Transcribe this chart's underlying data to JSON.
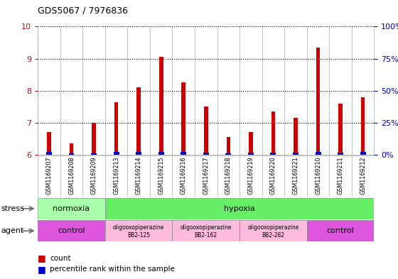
{
  "title": "GDS5067 / 7976836",
  "samples": [
    "GSM1169207",
    "GSM1169208",
    "GSM1169209",
    "GSM1169213",
    "GSM1169214",
    "GSM1169215",
    "GSM1169216",
    "GSM1169217",
    "GSM1169218",
    "GSM1169219",
    "GSM1169220",
    "GSM1169221",
    "GSM1169210",
    "GSM1169211",
    "GSM1169212"
  ],
  "count_values": [
    6.7,
    6.35,
    7.0,
    7.65,
    8.1,
    9.05,
    8.25,
    7.5,
    6.55,
    6.7,
    7.35,
    7.15,
    9.35,
    7.6,
    7.8
  ],
  "percentile_values": [
    2,
    1,
    1,
    2,
    2,
    2,
    2,
    1.5,
    1,
    1.5,
    1.5,
    1.5,
    2.5,
    1.5,
    2
  ],
  "count_base": 6.0,
  "ylim_left": [
    6,
    10
  ],
  "ylim_right": [
    0,
    100
  ],
  "yticks_left": [
    6,
    7,
    8,
    9,
    10
  ],
  "yticks_right": [
    0,
    25,
    50,
    75,
    100
  ],
  "ytick_labels_right": [
    "0%",
    "25%",
    "50%",
    "75%",
    "100%"
  ],
  "bar_color_count": "#cc0000",
  "bar_color_pct": "#0000cc",
  "bg_color": "#ffffff",
  "stress_norm_color": "#aaffaa",
  "stress_hyp_color": "#66ee66",
  "agent_control_color": "#dd55dd",
  "agent_oligo_color": "#ffbbdd",
  "grid_color": "#000000",
  "label_bg_color": "#cccccc",
  "legend_count_label": "count",
  "legend_pct_label": "percentile rank within the sample"
}
